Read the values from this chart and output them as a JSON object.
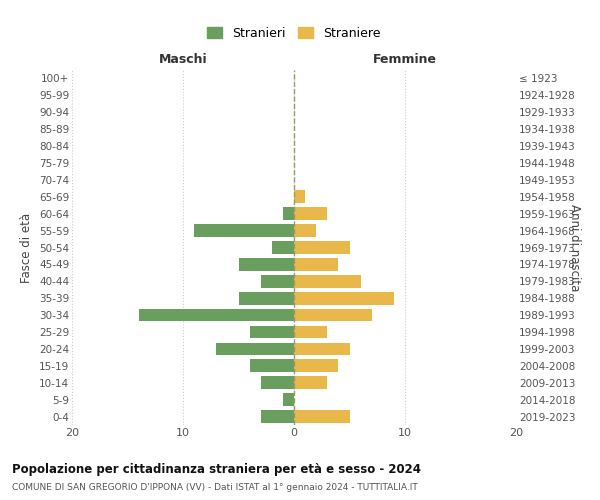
{
  "age_groups": [
    "0-4",
    "5-9",
    "10-14",
    "15-19",
    "20-24",
    "25-29",
    "30-34",
    "35-39",
    "40-44",
    "45-49",
    "50-54",
    "55-59",
    "60-64",
    "65-69",
    "70-74",
    "75-79",
    "80-84",
    "85-89",
    "90-94",
    "95-99",
    "100+"
  ],
  "birth_years": [
    "2019-2023",
    "2014-2018",
    "2009-2013",
    "2004-2008",
    "1999-2003",
    "1994-1998",
    "1989-1993",
    "1984-1988",
    "1979-1983",
    "1974-1978",
    "1969-1973",
    "1964-1968",
    "1959-1963",
    "1954-1958",
    "1949-1953",
    "1944-1948",
    "1939-1943",
    "1934-1938",
    "1929-1933",
    "1924-1928",
    "≤ 1923"
  ],
  "maschi": [
    3,
    1,
    3,
    4,
    7,
    4,
    14,
    5,
    3,
    5,
    2,
    9,
    1,
    0,
    0,
    0,
    0,
    0,
    0,
    0,
    0
  ],
  "femmine": [
    5,
    0,
    3,
    4,
    5,
    3,
    7,
    9,
    6,
    4,
    5,
    2,
    3,
    1,
    0,
    0,
    0,
    0,
    0,
    0,
    0
  ],
  "color_maschi": "#6a9e5e",
  "color_femmine": "#e8b84b",
  "xlim": 20,
  "title": "Popolazione per cittadinanza straniera per età e sesso - 2024",
  "subtitle": "COMUNE DI SAN GREGORIO D'IPPONA (VV) - Dati ISTAT al 1° gennaio 2024 - TUTTITALIA.IT",
  "ylabel_left": "Fasce di età",
  "ylabel_right": "Anni di nascita",
  "header_left": "Maschi",
  "header_right": "Femmine",
  "legend_stranieri": "Stranieri",
  "legend_straniere": "Straniere",
  "bg_color": "#ffffff",
  "grid_color": "#cccccc",
  "dashed_line_color": "#999966"
}
